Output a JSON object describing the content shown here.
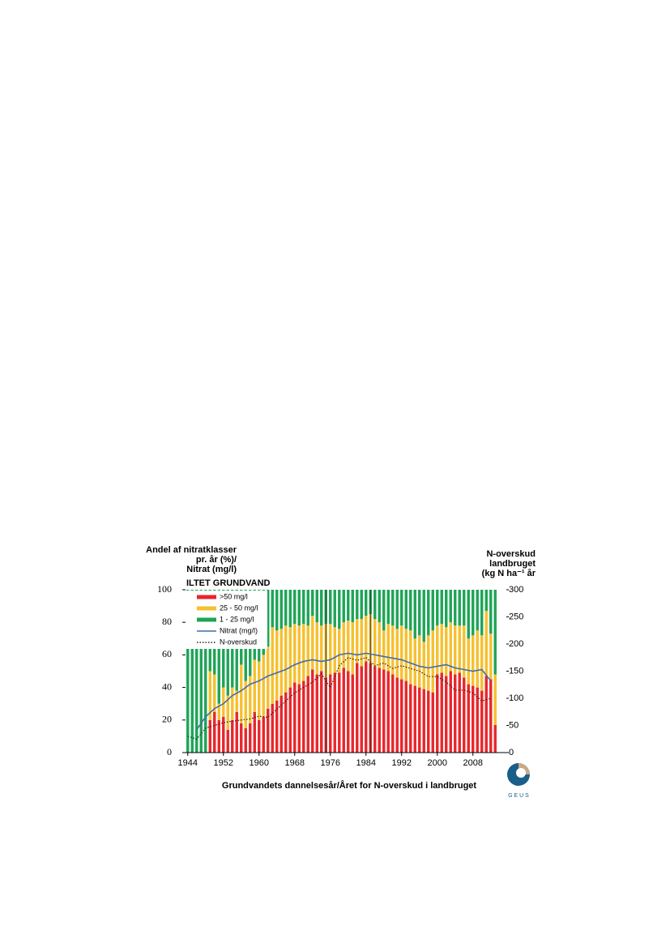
{
  "chart_data": {
    "type": "bar",
    "stacked": true,
    "title_left": [
      "Andel af nitratklasser",
      "pr. år (%)/",
      "Nitrat (mg/l)"
    ],
    "title_right": [
      "N-overskud",
      "landbruget",
      "(kg N ha⁻¹ år"
    ],
    "annotation": "ILTET GRUNDVAND",
    "xlabel": "Grundvandets dannelsesår/Året for N-overskud i landbruget",
    "logo": "G E U S",
    "x": [
      1944,
      1945,
      1946,
      1947,
      1948,
      1949,
      1950,
      1951,
      1952,
      1953,
      1954,
      1955,
      1956,
      1957,
      1958,
      1959,
      1960,
      1961,
      1962,
      1963,
      1964,
      1965,
      1966,
      1967,
      1968,
      1969,
      1970,
      1971,
      1972,
      1973,
      1974,
      1975,
      1976,
      1977,
      1978,
      1979,
      1980,
      1981,
      1982,
      1983,
      1984,
      1985,
      1986,
      1987,
      1988,
      1989,
      1990,
      1991,
      1992,
      1993,
      1994,
      1995,
      1996,
      1997,
      1998,
      1999,
      2000,
      2001,
      2002,
      2003,
      2004,
      2005,
      2006,
      2007,
      2008,
      2009,
      2010,
      2011,
      2012,
      2013
    ],
    "series": [
      {
        "name": ">50 mg/l",
        "color": "#e8262b",
        "values": [
          0,
          0,
          0,
          0,
          0,
          20,
          25,
          20,
          22,
          14,
          20,
          25,
          18,
          15,
          18,
          25,
          20,
          22,
          27,
          30,
          32,
          35,
          37,
          40,
          43,
          42,
          44,
          47,
          51,
          48,
          50,
          46,
          48,
          49,
          49,
          52,
          50,
          48,
          55,
          53,
          56,
          55,
          53,
          52,
          51,
          50,
          48,
          46,
          45,
          44,
          42,
          41,
          40,
          39,
          38,
          37,
          48,
          49,
          47,
          50,
          48,
          49,
          46,
          42,
          41,
          40,
          38,
          47,
          45,
          17
        ]
      },
      {
        "name": "25 - 50 mg/l",
        "color": "#f6c02e",
        "values": [
          0,
          0,
          0,
          0,
          0,
          30,
          23,
          10,
          18,
          21,
          20,
          13,
          36,
          29,
          29,
          32,
          36,
          38,
          38,
          47,
          43,
          41,
          41,
          37,
          36,
          36,
          35,
          31,
          33,
          32,
          28,
          33,
          31,
          28,
          27,
          28,
          31,
          32,
          27,
          29,
          28,
          30,
          29,
          28,
          24,
          29,
          30,
          30,
          33,
          32,
          33,
          29,
          32,
          29,
          34,
          38,
          30,
          30,
          30,
          30,
          30,
          29,
          32,
          28,
          31,
          35,
          34,
          40,
          28,
          31
        ]
      },
      {
        "name": "1 - 25 mg/l",
        "color": "#1ea457",
        "values": [
          100,
          100,
          100,
          100,
          100,
          50,
          52,
          70,
          60,
          65,
          60,
          62,
          46,
          56,
          53,
          43,
          44,
          40,
          35,
          23,
          25,
          24,
          22,
          23,
          21,
          22,
          21,
          22,
          16,
          20,
          22,
          21,
          21,
          23,
          24,
          20,
          19,
          20,
          18,
          18,
          16,
          15,
          18,
          20,
          25,
          21,
          22,
          24,
          22,
          24,
          25,
          30,
          28,
          32,
          28,
          25,
          22,
          21,
          23,
          20,
          22,
          22,
          22,
          30,
          28,
          25,
          28,
          13,
          27,
          52
        ]
      }
    ],
    "line_series": [
      {
        "name": "Nitrat (mg/l)",
        "color": "#3f6fa8",
        "dashed": false,
        "axis": "y",
        "x": [
          1946,
          1948,
          1950,
          1952,
          1954,
          1956,
          1958,
          1960,
          1962,
          1964,
          1966,
          1968,
          1970,
          1972,
          1974,
          1976,
          1978,
          1980,
          1982,
          1984,
          1986,
          1988,
          1990,
          1992,
          1994,
          1996,
          1998,
          2000,
          2002,
          2004,
          2006,
          2008,
          2010,
          2012
        ],
        "values": [
          14,
          22,
          27,
          30,
          35,
          38,
          42,
          44,
          47,
          49,
          51,
          54,
          56,
          57,
          56,
          57,
          60,
          61,
          60,
          61,
          60,
          59,
          58,
          57,
          55,
          53,
          52,
          53,
          54,
          52,
          51,
          50,
          51,
          44
        ]
      },
      {
        "name": "N-overskud",
        "color": "#222222",
        "dashed": true,
        "axis": "y2",
        "x": [
          1944,
          1946,
          1948,
          1950,
          1952,
          1954,
          1956,
          1958,
          1960,
          1962,
          1964,
          1966,
          1968,
          1970,
          1972,
          1974,
          1976,
          1978,
          1980,
          1982,
          1984,
          1986,
          1988,
          1990,
          1992,
          1994,
          1996,
          1998,
          2000,
          2002,
          2004,
          2006,
          2008,
          2010,
          2012
        ],
        "values": [
          30,
          25,
          45,
          50,
          55,
          58,
          60,
          62,
          67,
          65,
          80,
          95,
          110,
          120,
          130,
          145,
          120,
          160,
          175,
          170,
          175,
          160,
          165,
          155,
          160,
          155,
          150,
          140,
          140,
          130,
          115,
          115,
          110,
          95,
          100
        ]
      }
    ],
    "vlines": [
      1975,
      1985
    ],
    "xlim": [
      1943.5,
      2015.5
    ],
    "xticks": [
      1944,
      1952,
      1960,
      1968,
      1976,
      1984,
      1992,
      2000,
      2008
    ],
    "ylim": [
      0,
      100
    ],
    "yticks": [
      0,
      20,
      40,
      60,
      80,
      100
    ],
    "y2lim": [
      0,
      300
    ],
    "y2ticks": [
      0,
      50,
      100,
      150,
      200,
      250,
      300
    ],
    "legend": "upper left"
  }
}
